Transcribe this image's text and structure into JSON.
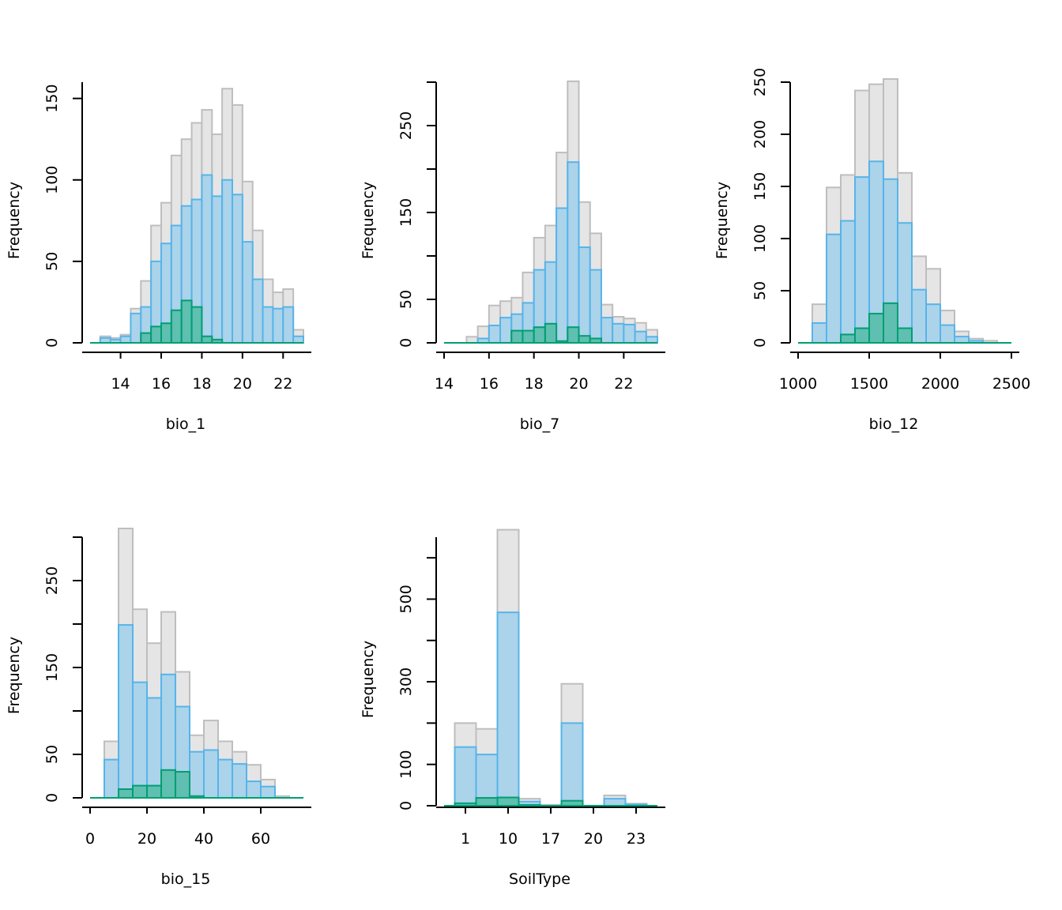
{
  "colors": {
    "all_fill": "#e5e5e5",
    "all_stroke": "#bebebe",
    "mid_fill": "#abd3ea",
    "mid_stroke": "#56b4e9",
    "low_fill": "#5fbfb0",
    "low_stroke": "#009e73",
    "axis": "#000000"
  },
  "chart_data": [
    {
      "type": "bar",
      "xlabel": "bio_1",
      "ylabel": "Frequency",
      "xlim": [
        12.5,
        23
      ],
      "ylim": [
        0,
        160
      ],
      "xticks": [
        14,
        16,
        18,
        20,
        22
      ],
      "yticks": [
        0,
        50,
        100,
        150
      ],
      "ytick_labels": [
        "0",
        "50",
        "100",
        "150"
      ],
      "yminor": [],
      "bin_start": 13,
      "bin_width": 0.5,
      "series": [
        {
          "values": [
            4,
            3,
            5,
            21,
            38,
            72,
            86,
            115,
            125,
            135,
            143,
            128,
            156,
            146,
            99,
            69,
            39,
            31,
            33,
            8
          ]
        },
        {
          "values": [
            3,
            2,
            4,
            18,
            22,
            50,
            61,
            72,
            84,
            88,
            103,
            90,
            100,
            91,
            62,
            39,
            22,
            21,
            22,
            4
          ]
        },
        {
          "values": [
            0,
            0,
            0,
            0,
            6,
            10,
            12,
            20,
            26,
            22,
            4,
            2,
            0,
            0,
            0,
            0,
            0,
            0,
            0,
            0
          ]
        }
      ]
    },
    {
      "type": "bar",
      "xlabel": "bio_7",
      "ylabel": "Frequency",
      "xlim": [
        14,
        23.5
      ],
      "ylim": [
        0,
        300
      ],
      "xticks": [
        14,
        16,
        18,
        20,
        22
      ],
      "yticks": [
        0,
        50,
        150,
        250
      ],
      "ytick_labels": [
        "0",
        "50",
        "150",
        "250"
      ],
      "yminor": [
        100,
        200,
        300
      ],
      "bin_start": 15,
      "bin_width": 0.5,
      "series": [
        {
          "values": [
            7,
            19,
            43,
            48,
            52,
            81,
            121,
            135,
            219,
            301,
            162,
            126,
            44,
            30,
            28,
            23,
            15
          ]
        },
        {
          "values": [
            0,
            5,
            20,
            29,
            33,
            46,
            84,
            93,
            155,
            208,
            110,
            84,
            29,
            22,
            21,
            13,
            7
          ]
        },
        {
          "values": [
            0,
            0,
            0,
            0,
            14,
            14,
            18,
            22,
            2,
            18,
            8,
            5,
            0,
            0,
            0,
            0,
            0
          ]
        }
      ]
    },
    {
      "type": "bar",
      "xlabel": "bio_12",
      "ylabel": "Frequency",
      "xlim": [
        1000,
        2500
      ],
      "ylim": [
        0,
        250
      ],
      "xticks": [
        1000,
        1500,
        2000,
        2500
      ],
      "yticks": [
        0,
        50,
        100,
        150,
        200,
        250
      ],
      "ytick_labels": [
        "0",
        "50",
        "100",
        "150",
        "200",
        "250"
      ],
      "yminor": [],
      "bin_start": 1100,
      "bin_width": 100,
      "series": [
        {
          "values": [
            37,
            149,
            161,
            242,
            248,
            253,
            163,
            83,
            71,
            31,
            11,
            4,
            2
          ]
        },
        {
          "values": [
            19,
            104,
            117,
            159,
            174,
            157,
            115,
            51,
            37,
            17,
            6,
            2,
            0
          ]
        },
        {
          "values": [
            0,
            0,
            8,
            14,
            28,
            38,
            14,
            0,
            0,
            0,
            0,
            0,
            0
          ]
        }
      ]
    },
    {
      "type": "bar",
      "xlabel": "bio_15",
      "ylabel": "Frequency",
      "xlim": [
        0,
        75
      ],
      "ylim": [
        0,
        300
      ],
      "xticks": [
        0,
        20,
        40,
        60
      ],
      "yticks": [
        0,
        50,
        150,
        250
      ],
      "ytick_labels": [
        "0",
        "50",
        "150",
        "250"
      ],
      "yminor": [
        100,
        200,
        300
      ],
      "bin_start": 5,
      "bin_width": 5,
      "series": [
        {
          "values": [
            65,
            310,
            217,
            178,
            214,
            145,
            72,
            89,
            65,
            53,
            38,
            21,
            2
          ]
        },
        {
          "values": [
            44,
            199,
            133,
            115,
            142,
            105,
            53,
            55,
            44,
            39,
            19,
            13,
            0
          ]
        },
        {
          "values": [
            0,
            10,
            14,
            14,
            32,
            30,
            2,
            0,
            0,
            0,
            0,
            0,
            0
          ]
        }
      ]
    },
    {
      "type": "bar",
      "xlabel": "SoilType",
      "ylabel": "Frequency",
      "xlim": [
        0,
        10
      ],
      "ylim": [
        0,
        650
      ],
      "xticks": [
        1,
        3,
        5,
        7,
        9
      ],
      "xtick_labels": [
        "1",
        "10",
        "17",
        "20",
        "23"
      ],
      "yticks": [
        0,
        100,
        300,
        500
      ],
      "ytick_labels": [
        "0",
        "100",
        "300",
        "500"
      ],
      "yminor": [
        200,
        400,
        600
      ],
      "bin_start": 0.5,
      "bin_width": 1,
      "series": [
        {
          "values": [
            200,
            186,
            668,
            17,
            2,
            295,
            0,
            25,
            5
          ]
        },
        {
          "values": [
            142,
            124,
            468,
            10,
            0,
            200,
            0,
            17,
            3
          ]
        },
        {
          "values": [
            6,
            19,
            20,
            2,
            0,
            12,
            0,
            0,
            0
          ]
        }
      ]
    }
  ]
}
